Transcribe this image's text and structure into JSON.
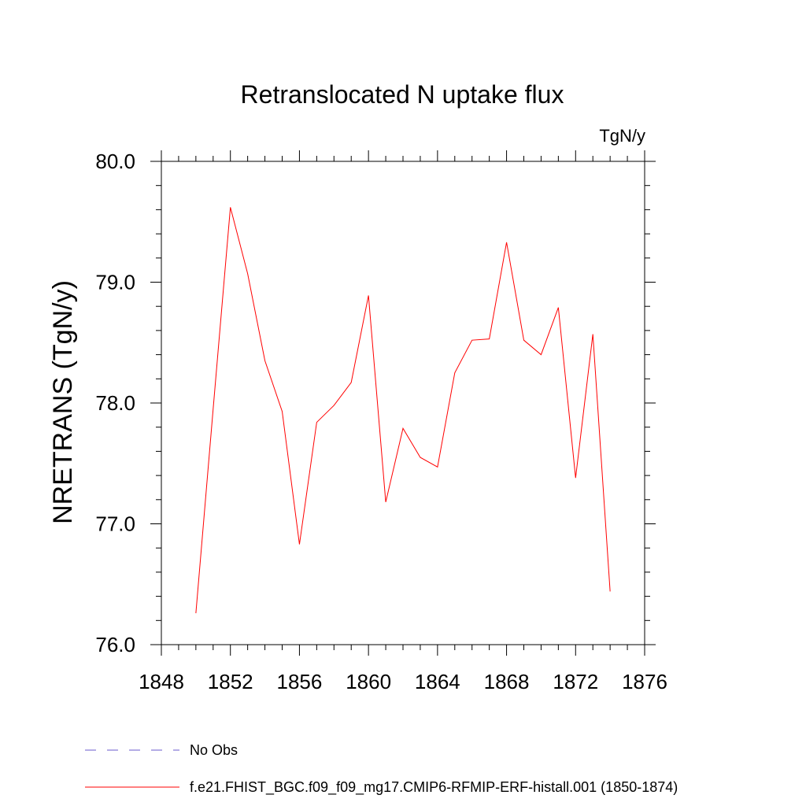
{
  "chart_data": {
    "type": "line",
    "title": "Retranslocated N uptake flux",
    "units": "TgN/y",
    "ylabel": "NRETRANS  (TgN/y)",
    "xlabel": "",
    "xlim": [
      1848,
      1876
    ],
    "ylim": [
      76.0,
      80.0
    ],
    "xticks": [
      1848,
      1852,
      1856,
      1860,
      1864,
      1868,
      1872,
      1876
    ],
    "yticks": [
      "76.0",
      "77.0",
      "78.0",
      "79.0",
      "80.0"
    ],
    "grid": false,
    "series": [
      {
        "name": "f.e21.FHIST_BGC.f09_f09_mg17.CMIP6-RFMIP-ERF-histall.001 (1850-1874)",
        "color": "#ff0000",
        "x": [
          1850,
          1851,
          1852,
          1853,
          1854,
          1855,
          1856,
          1857,
          1858,
          1859,
          1860,
          1861,
          1862,
          1863,
          1864,
          1865,
          1866,
          1867,
          1868,
          1869,
          1870,
          1871,
          1872,
          1873,
          1874
        ],
        "y": [
          76.26,
          77.95,
          79.62,
          79.07,
          78.35,
          77.93,
          76.83,
          77.84,
          77.98,
          78.17,
          78.89,
          77.18,
          77.79,
          77.55,
          77.47,
          78.25,
          78.52,
          78.53,
          79.33,
          78.52,
          78.4,
          78.79,
          77.38,
          78.57,
          76.44
        ]
      }
    ],
    "legend": {
      "placement": "bottom-left",
      "entries": [
        {
          "label": "No Obs",
          "color": "#6a5acd",
          "style": "dashed"
        },
        {
          "label": "f.e21.FHIST_BGC.f09_f09_mg17.CMIP6-RFMIP-ERF-histall.001 (1850-1874)",
          "color": "#ff0000",
          "style": "solid"
        }
      ]
    }
  }
}
